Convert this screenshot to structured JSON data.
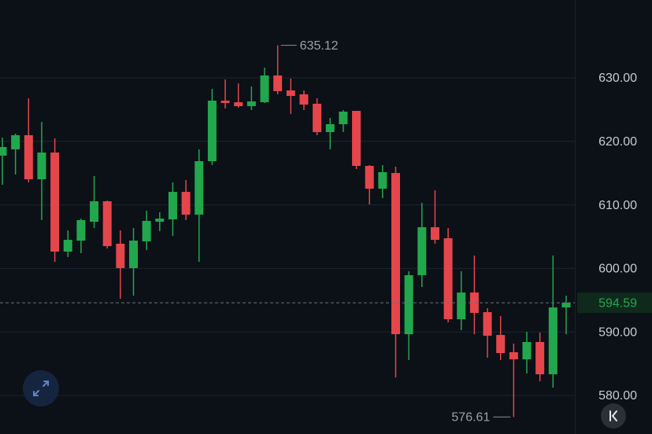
{
  "chart_data": {
    "type": "candlestick",
    "open": [
      617.75,
      618.74,
      620.97,
      614.03,
      618.24,
      602.65,
      604.38,
      607.35,
      610.57,
      603.89,
      600.05,
      604.26,
      607.35,
      607.72,
      612.05,
      608.47,
      616.88,
      626.41,
      626.16,
      625.54,
      626.16,
      630.37,
      628.02,
      627.4,
      625.92,
      621.46,
      622.7,
      624.8,
      616.14,
      612.55,
      615.02,
      589.65,
      598.94,
      606.49,
      604.75,
      592.0,
      596.21,
      593.12,
      589.53,
      586.81,
      585.69,
      588.42,
      583.34,
      593.86
    ],
    "high": [
      620.59,
      621.21,
      626.78,
      623.07,
      620.47,
      605.99,
      607.85,
      614.53,
      610.69,
      605.99,
      606.36,
      609.08,
      608.84,
      613.54,
      613.91,
      618.74,
      628.27,
      629.75,
      629.13,
      628.64,
      631.61,
      635.12,
      629.88,
      628.02,
      626.78,
      623.69,
      624.93,
      624.8,
      616.26,
      616.26,
      616.01,
      599.55,
      610.32,
      612.3,
      606.36,
      599.55,
      602.03,
      593.74,
      592.5,
      588.17,
      590.02,
      589.9,
      602.03,
      595.72
    ],
    "low": [
      613.17,
      614.78,
      613.54,
      607.6,
      601.04,
      601.78,
      602.4,
      606.36,
      603.14,
      595.22,
      595.72,
      602.9,
      605.87,
      605.12,
      607.6,
      601.04,
      616.26,
      625.17,
      625.3,
      624.93,
      626.04,
      627.4,
      624.31,
      624.93,
      620.97,
      618.74,
      621.46,
      615.64,
      610.07,
      611.06,
      582.85,
      585.57,
      597.08,
      603.89,
      591.51,
      590.27,
      589.65,
      585.94,
      585.57,
      576.61,
      583.47,
      582.23,
      581.24,
      589.65
    ],
    "close": [
      619.11,
      620.97,
      614.03,
      618.24,
      602.65,
      604.5,
      607.6,
      610.57,
      603.51,
      600.05,
      604.38,
      607.48,
      607.85,
      612.05,
      608.47,
      616.88,
      626.41,
      626.04,
      625.54,
      626.29,
      630.37,
      627.9,
      627.15,
      625.79,
      621.46,
      622.7,
      624.68,
      616.14,
      612.55,
      615.15,
      589.65,
      598.94,
      606.49,
      604.5,
      592.0,
      596.21,
      593.0,
      589.41,
      586.68,
      585.69,
      588.42,
      583.34,
      593.86,
      594.59
    ],
    "up_color": "#21a84d",
    "down_color": "#e5464b",
    "ylim": [
      573.94,
      642.25
    ],
    "yticks": [
      {
        "value": 580,
        "label": "580.00"
      },
      {
        "value": 590,
        "label": "590.00"
      },
      {
        "value": 600,
        "label": "600.00"
      },
      {
        "value": 610,
        "label": "610.00"
      },
      {
        "value": 620,
        "label": "620.00"
      },
      {
        "value": 630,
        "label": "630.00"
      }
    ],
    "grid": true
  }
}
